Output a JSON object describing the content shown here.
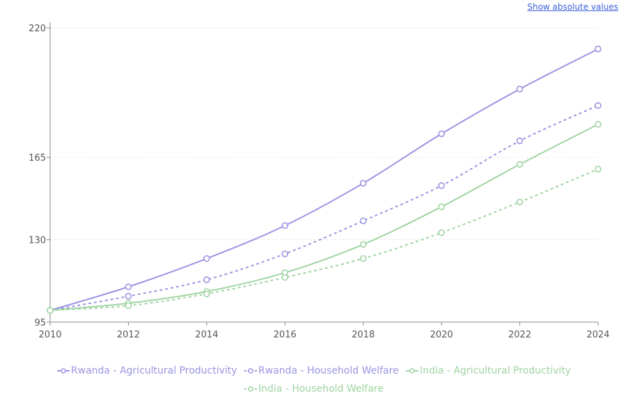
{
  "toggle_label": "Show absolute values",
  "chart_data": {
    "type": "line",
    "x": [
      2010,
      2012,
      2014,
      2016,
      2018,
      2020,
      2022,
      2024
    ],
    "xlim": [
      2010,
      2024
    ],
    "ylim": [
      95,
      220
    ],
    "x_ticks": [
      "2010",
      "2012",
      "2014",
      "2016",
      "2018",
      "2020",
      "2022",
      "2024"
    ],
    "y_ticks": [
      "95",
      "130",
      "165",
      "220"
    ],
    "y_tick_values": [
      95,
      130,
      165,
      220
    ],
    "grid": "horizontal dashed",
    "legend_position": "bottom",
    "series": [
      {
        "name": "Rwanda - Agricultural Productivity",
        "color": "#9a94e2",
        "style": "solid",
        "values": [
          100,
          110,
          122,
          136,
          154,
          175,
          194,
          211
        ]
      },
      {
        "name": "Rwanda - Household Welfare",
        "color": "#9a94e2",
        "style": "dashed",
        "values": [
          100,
          106,
          113,
          124,
          138,
          153,
          172,
          187
        ]
      },
      {
        "name": "India - Agricultural Productivity",
        "color": "#9fd4a2",
        "style": "solid",
        "values": [
          100,
          103,
          108,
          116,
          128,
          144,
          162,
          179
        ]
      },
      {
        "name": "India - Household Welfare",
        "color": "#9fd4a2",
        "style": "dashed",
        "values": [
          100,
          102,
          107,
          114,
          122,
          133,
          146,
          160
        ]
      }
    ]
  }
}
